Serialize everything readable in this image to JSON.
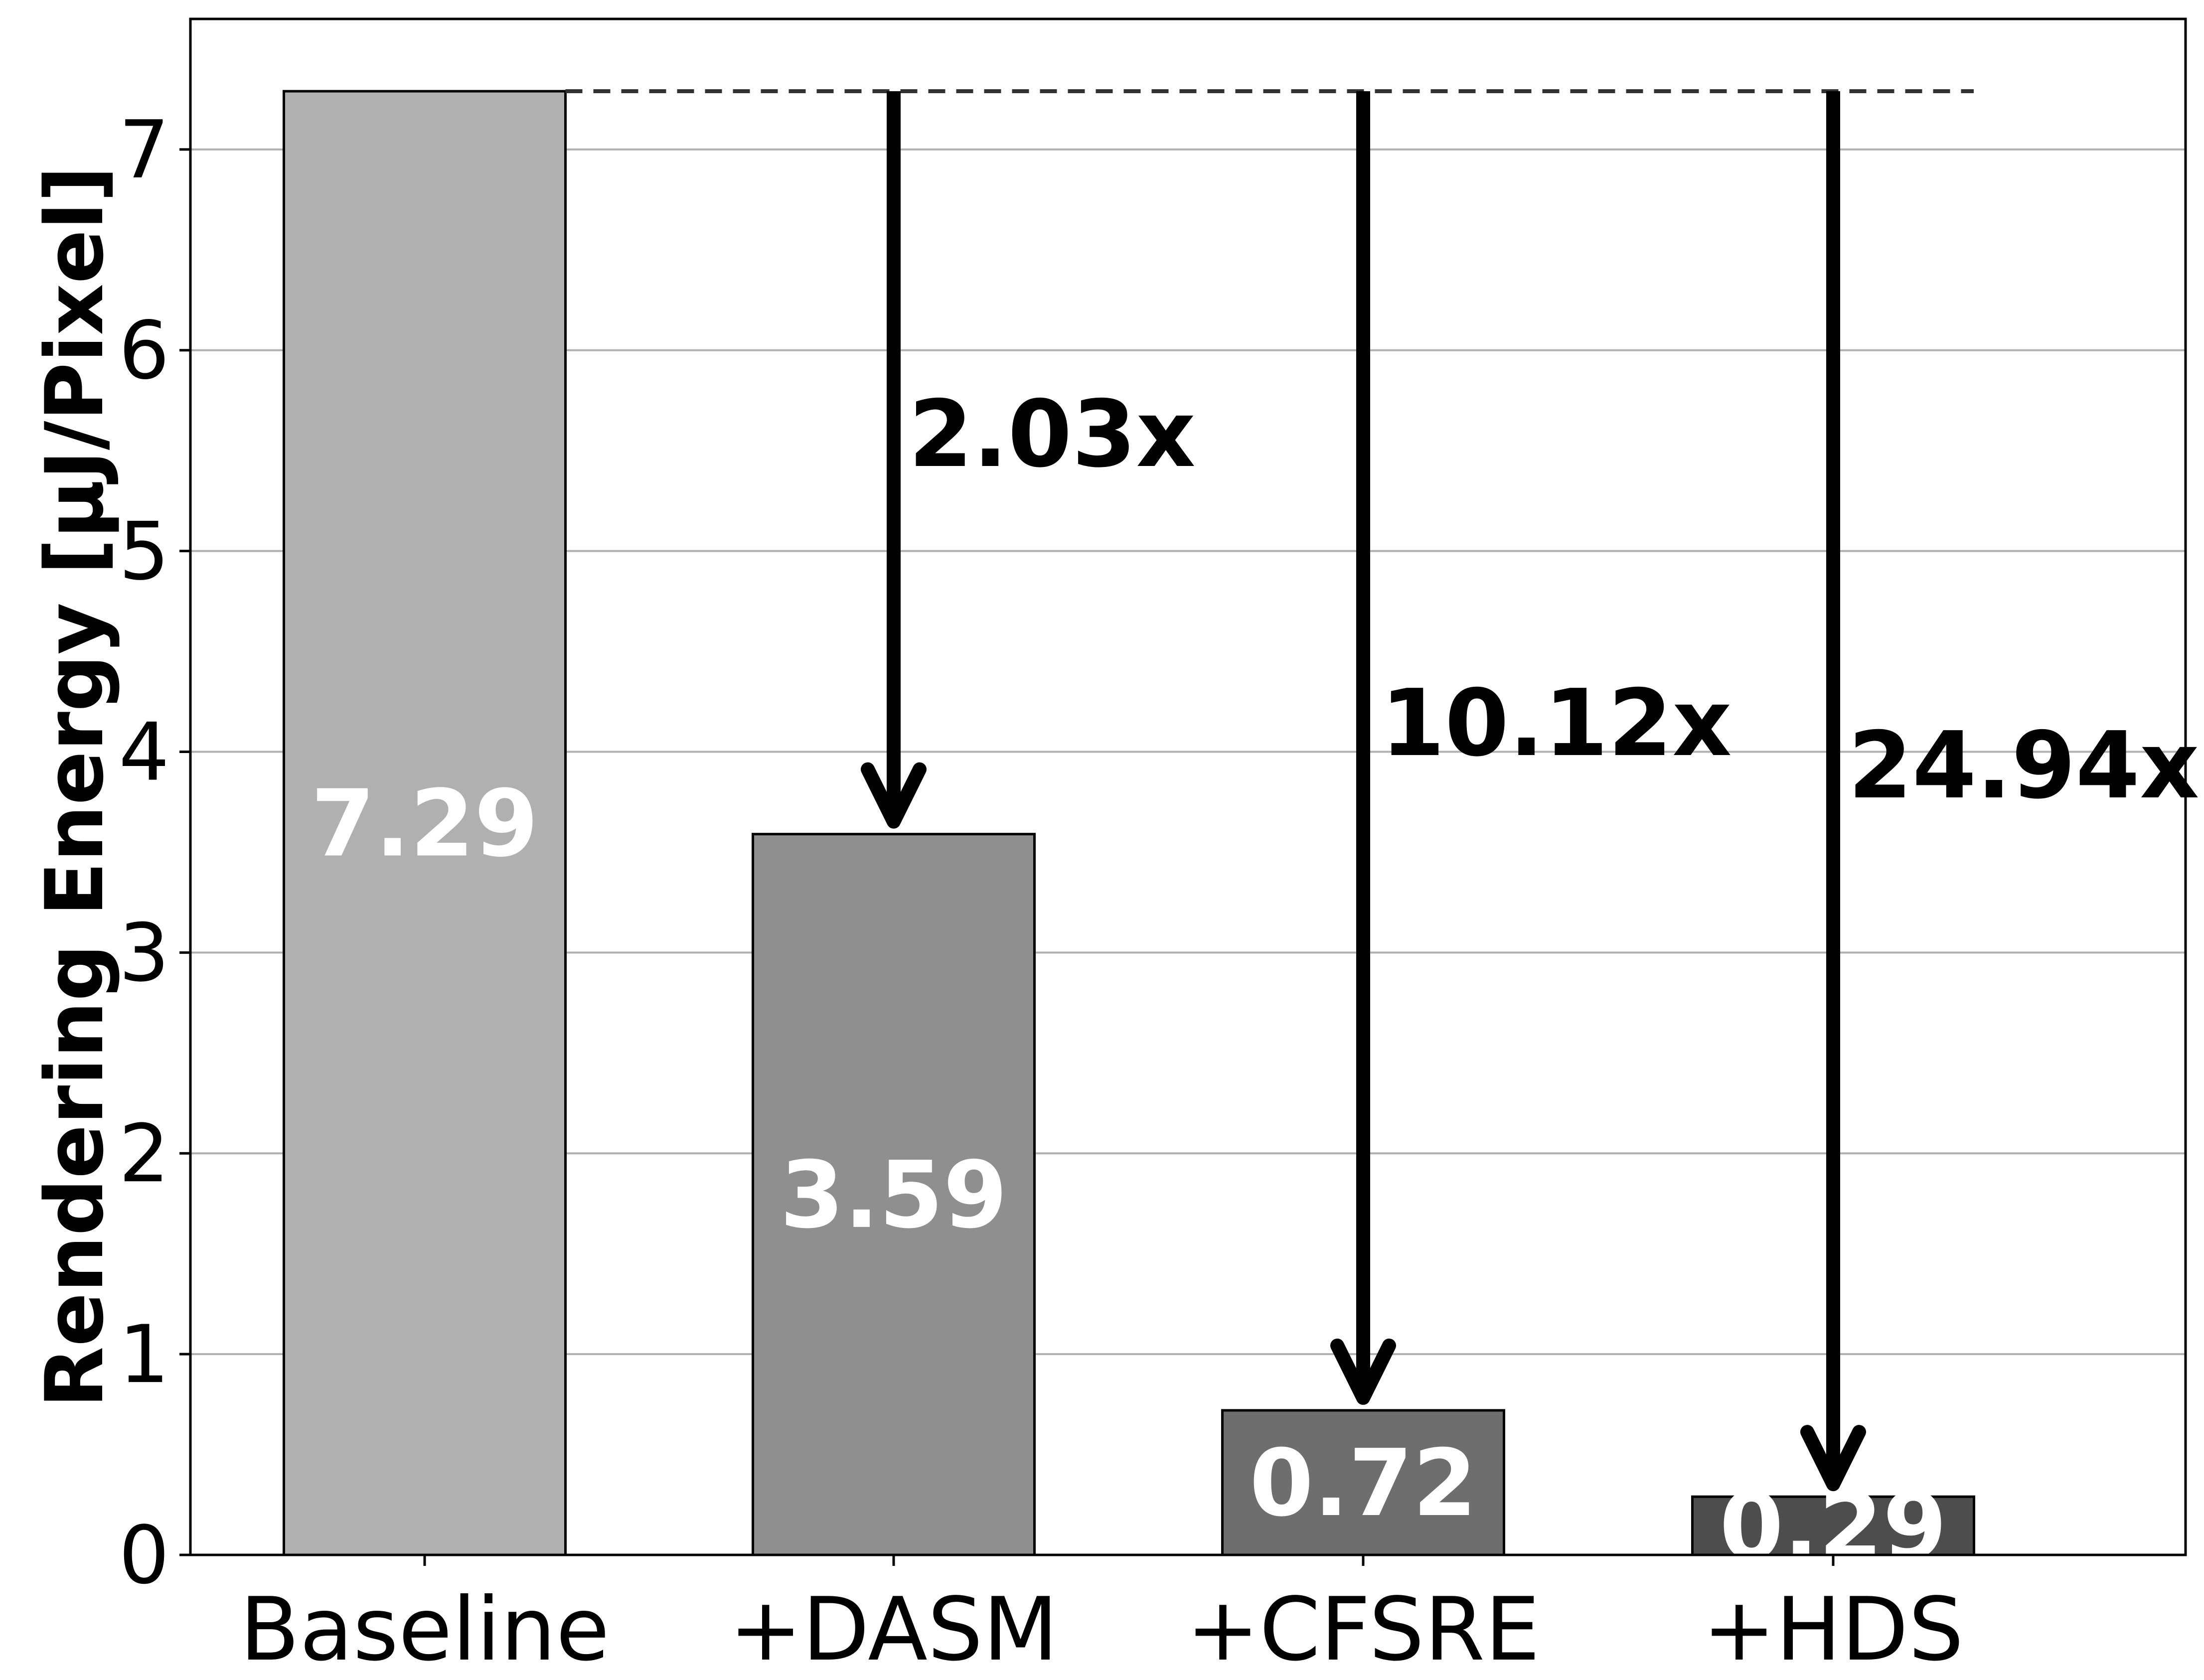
{
  "chart_data": {
    "type": "bar",
    "categories": [
      "Baseline",
      "+DASM",
      "+CFSRE",
      "+HDS"
    ],
    "values": [
      7.29,
      3.59,
      0.72,
      0.29
    ],
    "value_labels": [
      "7.29",
      "3.59",
      "0.72",
      "0.29"
    ],
    "ylabel": "Rendering Energy [μJ/Pixel]",
    "xlabel": "",
    "ylim": [
      0,
      7.65
    ],
    "yticks": [
      0,
      1,
      2,
      3,
      4,
      5,
      6,
      7
    ],
    "grid": "horizontal",
    "bar_colors": [
      "#b0b0b0",
      "#8f8f8f",
      "#6e6e6e",
      "#4d4d4d"
    ],
    "reference_line": {
      "value": 7.29,
      "style": "dashed"
    },
    "annotations": [
      {
        "category": "+DASM",
        "text": "2.03x"
      },
      {
        "category": "+CFSRE",
        "text": "10.12x"
      },
      {
        "category": "+HDS",
        "text": "24.94x"
      }
    ]
  }
}
